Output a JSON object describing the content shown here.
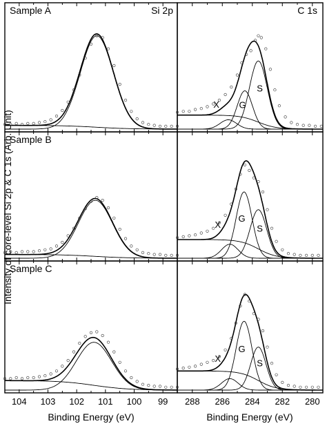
{
  "figure": {
    "ylabel": "Intensity of core-level Si 2p & C 1s (Arb. Unit)",
    "xlabels": [
      "Binding Energy (eV)",
      "Binding Energy (eV)"
    ]
  },
  "chart_data": [
    {
      "type": "line",
      "sample": "Sample A",
      "region": "Si 2p",
      "x_ticks": [
        104,
        103,
        102,
        101,
        100,
        99
      ],
      "xlim": [
        104.5,
        98.5
      ],
      "ylim": [
        0,
        1.22
      ],
      "background": {
        "y_high": 0.04,
        "y_low": 0.0
      },
      "peaks": [
        {
          "label": "",
          "center": 101.3,
          "fwhm": 1.35,
          "height": 1.0
        }
      ],
      "data_points": [
        [
          104.5,
          0.05
        ],
        [
          104.3,
          0.05
        ],
        [
          104.1,
          0.06
        ],
        [
          103.9,
          0.05
        ],
        [
          103.7,
          0.06
        ],
        [
          103.5,
          0.06
        ],
        [
          103.3,
          0.07
        ],
        [
          103.1,
          0.08
        ],
        [
          102.9,
          0.1
        ],
        [
          102.7,
          0.14
        ],
        [
          102.5,
          0.2
        ],
        [
          102.3,
          0.29
        ],
        [
          102.1,
          0.42
        ],
        [
          101.9,
          0.58
        ],
        [
          101.7,
          0.76
        ],
        [
          101.5,
          0.91
        ],
        [
          101.3,
          1.0
        ],
        [
          101.1,
          0.98
        ],
        [
          100.9,
          0.86
        ],
        [
          100.7,
          0.68
        ],
        [
          100.5,
          0.48
        ],
        [
          100.3,
          0.31
        ],
        [
          100.1,
          0.19
        ],
        [
          99.9,
          0.11
        ],
        [
          99.7,
          0.07
        ],
        [
          99.5,
          0.05
        ],
        [
          99.3,
          0.04
        ],
        [
          99.1,
          0.03
        ],
        [
          98.9,
          0.03
        ],
        [
          98.7,
          0.03
        ],
        [
          98.5,
          0.03
        ]
      ]
    },
    {
      "type": "line",
      "sample": "Sample A",
      "region": "C 1s",
      "x_ticks": [
        288,
        286,
        284,
        282,
        280
      ],
      "xlim": [
        289,
        279.3
      ],
      "ylim": [
        0,
        1.22
      ],
      "background": {
        "y_high": 0.15,
        "y_low": 0.0
      },
      "peaks": [
        {
          "label": "S",
          "center": 283.6,
          "fwhm": 1.4,
          "height": 0.73
        },
        {
          "label": "G",
          "center": 284.5,
          "fwhm": 1.2,
          "height": 0.41
        },
        {
          "label": "X",
          "center": 285.6,
          "fwhm": 1.3,
          "height": 0.1
        }
      ],
      "data_points": [
        [
          289.0,
          0.18
        ],
        [
          288.6,
          0.19
        ],
        [
          288.2,
          0.19
        ],
        [
          287.8,
          0.21
        ],
        [
          287.4,
          0.22
        ],
        [
          287.0,
          0.24
        ],
        [
          286.6,
          0.27
        ],
        [
          286.2,
          0.31
        ],
        [
          285.8,
          0.37
        ],
        [
          285.4,
          0.45
        ],
        [
          285.0,
          0.58
        ],
        [
          284.7,
          0.71
        ],
        [
          284.4,
          0.8
        ],
        [
          284.1,
          0.84
        ],
        [
          283.8,
          0.95
        ],
        [
          283.6,
          1.0
        ],
        [
          283.4,
          0.98
        ],
        [
          283.1,
          0.86
        ],
        [
          282.8,
          0.64
        ],
        [
          282.5,
          0.42
        ],
        [
          282.2,
          0.25
        ],
        [
          281.8,
          0.13
        ],
        [
          281.4,
          0.07
        ],
        [
          281.0,
          0.05
        ],
        [
          280.6,
          0.04
        ],
        [
          280.2,
          0.04
        ],
        [
          279.8,
          0.03
        ],
        [
          279.4,
          0.03
        ]
      ]
    },
    {
      "type": "line",
      "sample": "Sample B",
      "region": "Si 2p",
      "x_ticks": [
        104,
        103,
        102,
        101,
        100,
        99
      ],
      "xlim": [
        104.5,
        98.5
      ],
      "ylim": [
        0,
        1.22
      ],
      "background": {
        "y_high": 0.04,
        "y_low": 0.0
      },
      "peaks": [
        {
          "label": "",
          "center": 101.35,
          "fwhm": 1.4,
          "height": 0.62
        }
      ],
      "data_points": [
        [
          104.5,
          0.06
        ],
        [
          104.3,
          0.07
        ],
        [
          104.1,
          0.06
        ],
        [
          103.9,
          0.07
        ],
        [
          103.7,
          0.07
        ],
        [
          103.5,
          0.07
        ],
        [
          103.3,
          0.08
        ],
        [
          103.1,
          0.09
        ],
        [
          102.9,
          0.1
        ],
        [
          102.7,
          0.13
        ],
        [
          102.5,
          0.17
        ],
        [
          102.3,
          0.24
        ],
        [
          102.1,
          0.32
        ],
        [
          101.9,
          0.43
        ],
        [
          101.7,
          0.53
        ],
        [
          101.5,
          0.61
        ],
        [
          101.3,
          0.65
        ],
        [
          101.1,
          0.62
        ],
        [
          100.9,
          0.54
        ],
        [
          100.7,
          0.43
        ],
        [
          100.5,
          0.31
        ],
        [
          100.3,
          0.21
        ],
        [
          100.1,
          0.13
        ],
        [
          99.9,
          0.09
        ],
        [
          99.7,
          0.06
        ],
        [
          99.5,
          0.05
        ],
        [
          99.3,
          0.04
        ],
        [
          99.1,
          0.04
        ],
        [
          98.9,
          0.03
        ],
        [
          98.7,
          0.03
        ],
        [
          98.5,
          0.03
        ]
      ]
    },
    {
      "type": "line",
      "sample": "Sample B",
      "region": "C 1s",
      "x_ticks": [
        288,
        286,
        284,
        282,
        280
      ],
      "xlim": [
        289,
        279.3
      ],
      "ylim": [
        0,
        1.22
      ],
      "background": {
        "y_high": 0.2,
        "y_low": 0.0
      },
      "peaks": [
        {
          "label": "S",
          "center": 283.6,
          "fwhm": 1.3,
          "height": 0.52
        },
        {
          "label": "G",
          "center": 284.55,
          "fwhm": 1.25,
          "height": 0.71
        },
        {
          "label": "X",
          "center": 285.5,
          "fwhm": 1.3,
          "height": 0.15
        }
      ],
      "data_points": [
        [
          289.0,
          0.22
        ],
        [
          288.6,
          0.23
        ],
        [
          288.2,
          0.24
        ],
        [
          287.8,
          0.25
        ],
        [
          287.4,
          0.27
        ],
        [
          287.0,
          0.29
        ],
        [
          286.6,
          0.32
        ],
        [
          286.2,
          0.38
        ],
        [
          285.8,
          0.46
        ],
        [
          285.4,
          0.58
        ],
        [
          285.1,
          0.74
        ],
        [
          284.8,
          0.9
        ],
        [
          284.5,
          1.0
        ],
        [
          284.2,
          0.94
        ],
        [
          283.9,
          0.86
        ],
        [
          283.6,
          0.82
        ],
        [
          283.3,
          0.71
        ],
        [
          283.0,
          0.52
        ],
        [
          282.7,
          0.32
        ],
        [
          282.4,
          0.18
        ],
        [
          282.0,
          0.09
        ],
        [
          281.6,
          0.05
        ],
        [
          281.2,
          0.04
        ],
        [
          280.8,
          0.03
        ],
        [
          280.4,
          0.03
        ],
        [
          280.0,
          0.03
        ],
        [
          279.6,
          0.03
        ]
      ]
    },
    {
      "type": "line",
      "sample": "Sample C",
      "region": "Si 2p",
      "x_ticks": [
        104,
        103,
        102,
        101,
        100,
        99
      ],
      "xlim": [
        104.5,
        98.5
      ],
      "ylim": [
        0,
        1.22
      ],
      "background": {
        "y_high": 0.1,
        "y_low": 0.0
      },
      "peaks": [
        {
          "label": "",
          "center": 101.4,
          "fwhm": 1.45,
          "height": 0.5
        }
      ],
      "data_points": [
        [
          104.5,
          0.12
        ],
        [
          104.3,
          0.12
        ],
        [
          104.1,
          0.13
        ],
        [
          103.9,
          0.12
        ],
        [
          103.7,
          0.13
        ],
        [
          103.5,
          0.13
        ],
        [
          103.3,
          0.14
        ],
        [
          103.1,
          0.15
        ],
        [
          102.9,
          0.17
        ],
        [
          102.7,
          0.2
        ],
        [
          102.5,
          0.25
        ],
        [
          102.3,
          0.31
        ],
        [
          102.1,
          0.4
        ],
        [
          101.9,
          0.49
        ],
        [
          101.7,
          0.56
        ],
        [
          101.5,
          0.6
        ],
        [
          101.3,
          0.61
        ],
        [
          101.1,
          0.57
        ],
        [
          100.9,
          0.5
        ],
        [
          100.7,
          0.4
        ],
        [
          100.5,
          0.29
        ],
        [
          100.3,
          0.2
        ],
        [
          100.1,
          0.13
        ],
        [
          99.9,
          0.09
        ],
        [
          99.7,
          0.06
        ],
        [
          99.5,
          0.05
        ],
        [
          99.3,
          0.04
        ],
        [
          99.1,
          0.04
        ],
        [
          98.9,
          0.03
        ],
        [
          98.7,
          0.03
        ],
        [
          98.5,
          0.03
        ]
      ]
    },
    {
      "type": "line",
      "sample": "Sample C",
      "region": "C 1s",
      "x_ticks": [
        288,
        286,
        284,
        282,
        280
      ],
      "xlim": [
        289,
        279.3
      ],
      "ylim": [
        0,
        1.22
      ],
      "background": {
        "y_high": 0.2,
        "y_low": 0.0
      },
      "peaks": [
        {
          "label": "S",
          "center": 283.6,
          "fwhm": 1.2,
          "height": 0.45
        },
        {
          "label": "G",
          "center": 284.55,
          "fwhm": 1.25,
          "height": 0.72
        },
        {
          "label": "X",
          "center": 285.5,
          "fwhm": 1.3,
          "height": 0.12
        }
      ],
      "data_points": [
        [
          289.0,
          0.22
        ],
        [
          288.6,
          0.23
        ],
        [
          288.2,
          0.24
        ],
        [
          287.8,
          0.25
        ],
        [
          287.4,
          0.27
        ],
        [
          287.0,
          0.29
        ],
        [
          286.6,
          0.31
        ],
        [
          286.2,
          0.35
        ],
        [
          285.8,
          0.42
        ],
        [
          285.4,
          0.54
        ],
        [
          285.1,
          0.7
        ],
        [
          284.8,
          0.88
        ],
        [
          284.5,
          1.0
        ],
        [
          284.2,
          0.93
        ],
        [
          283.9,
          0.8
        ],
        [
          283.6,
          0.74
        ],
        [
          283.3,
          0.62
        ],
        [
          283.0,
          0.45
        ],
        [
          282.7,
          0.28
        ],
        [
          282.4,
          0.16
        ],
        [
          282.0,
          0.08
        ],
        [
          281.6,
          0.05
        ],
        [
          281.2,
          0.04
        ],
        [
          280.8,
          0.03
        ],
        [
          280.4,
          0.03
        ],
        [
          280.0,
          0.03
        ],
        [
          279.6,
          0.03
        ]
      ]
    }
  ]
}
